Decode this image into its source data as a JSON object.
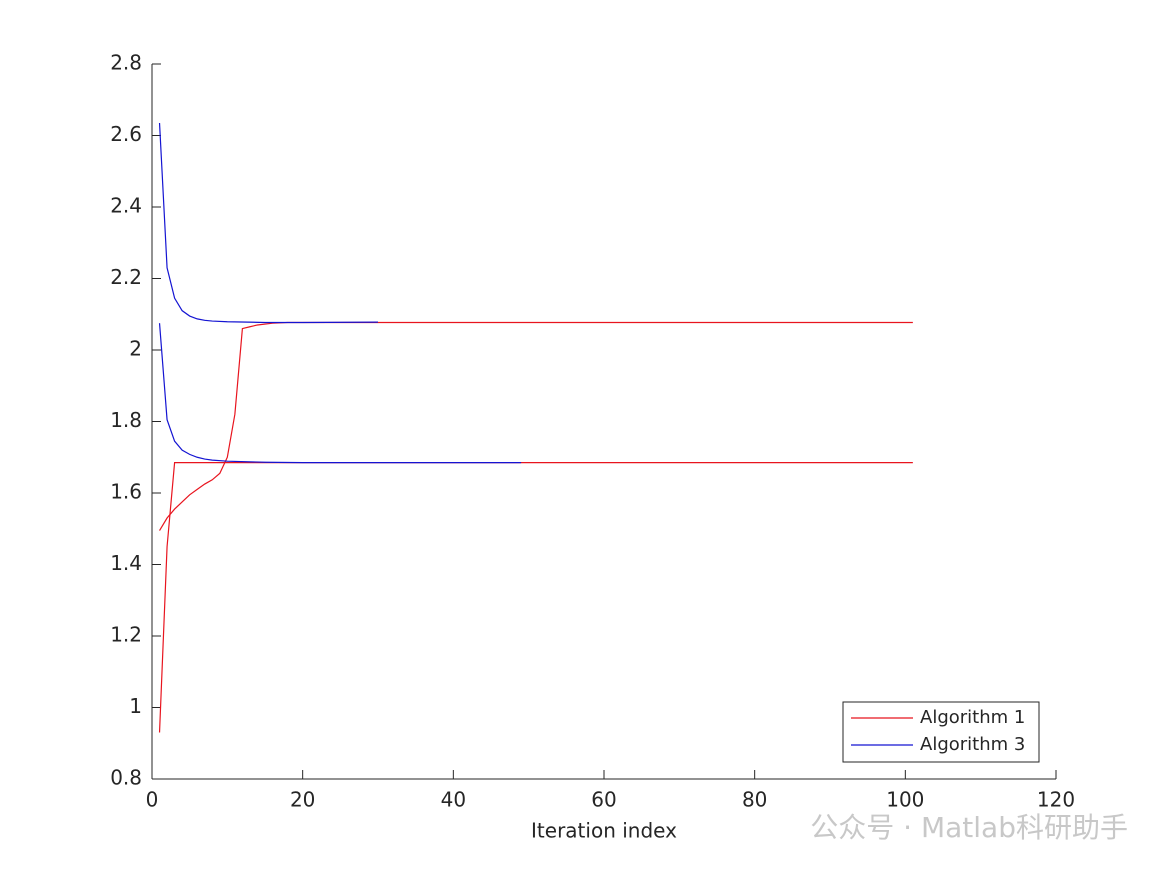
{
  "chart_data": {
    "type": "line",
    "xlabel": "Iteration index",
    "watermark": "公众号 · Matlab科研助手",
    "xlim": [
      0,
      120
    ],
    "xticks": [
      0,
      20,
      40,
      60,
      80,
      100,
      120
    ],
    "ylim": [
      0.8,
      2.8
    ],
    "yticks": [
      0.8,
      1,
      1.2,
      1.4,
      1.6,
      1.8,
      2,
      2.2,
      2.4,
      2.6,
      2.8
    ],
    "legend": "southeast",
    "series": [
      {
        "name": "Algorithm 1",
        "color": "#e8141e",
        "runs": [
          {
            "x": [
              1,
              2,
              3,
              101
            ],
            "values": [
              0.93,
              1.45,
              1.685,
              1.685
            ]
          },
          {
            "x": [
              1,
              2,
              3,
              4,
              5,
              6,
              7,
              8,
              9,
              10,
              11,
              12,
              13,
              14,
              16,
              18,
              101
            ],
            "values": [
              1.495,
              1.53,
              1.555,
              1.575,
              1.595,
              1.61,
              1.625,
              1.637,
              1.655,
              1.7,
              1.82,
              2.06,
              2.065,
              2.07,
              2.075,
              2.077,
              2.077
            ]
          }
        ]
      },
      {
        "name": "Algorithm 3",
        "color": "#1414d2",
        "runs": [
          {
            "x": [
              1,
              2,
              3,
              4,
              5,
              6,
              7,
              8,
              10,
              15,
              20,
              30
            ],
            "values": [
              2.635,
              2.23,
              2.145,
              2.11,
              2.095,
              2.087,
              2.083,
              2.081,
              2.079,
              2.077,
              2.077,
              2.078
            ]
          },
          {
            "x": [
              1,
              2,
              3,
              4,
              5,
              6,
              7,
              8,
              10,
              15,
              20,
              49
            ],
            "values": [
              2.075,
              1.805,
              1.745,
              1.72,
              1.708,
              1.7,
              1.695,
              1.692,
              1.689,
              1.686,
              1.685,
              1.685
            ]
          }
        ]
      }
    ]
  }
}
